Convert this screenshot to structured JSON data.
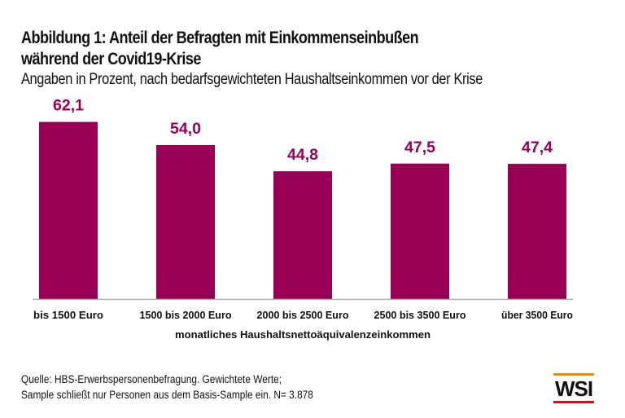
{
  "chart_data": {
    "type": "bar",
    "title": "Abbildung 1: Anteil der Befragten mit Einkommenseinbußen während der Covid19-Krise",
    "title_lines": [
      "Abbildung 1: Anteil der Befragten mit Einkommenseinbußen",
      "während der Covid19-Krise"
    ],
    "subtitle": "Angaben in Prozent, nach bedarfsgewichteten Haushaltseinkommen vor der Krise",
    "categories": [
      "bis 1500 Euro",
      "1500 bis 2000 Euro",
      "2000 bis 2500 Euro",
      "2500 bis 3500 Euro",
      "über 3500 Euro"
    ],
    "values": [
      62.1,
      54.0,
      44.8,
      47.5,
      47.4
    ],
    "value_labels": [
      "62,1",
      "54,0",
      "44,8",
      "47,5",
      "47,4"
    ],
    "xlabel": "monatliches Haushaltsnettoäquivalenzeinkommen",
    "ylabel": "",
    "ylim": [
      0,
      62.1
    ],
    "grid": false,
    "bar_color": "#990055"
  },
  "footer": {
    "source_lines": [
      "Quelle: HBS-Erwerbspersonenbefragung. Gewichtete Werte;",
      "Sample schließt nur Personen aus dem Basis-Sample ein. N= 3.878"
    ],
    "logo_text": "WSI",
    "logo_colors": {
      "top": "#f28a00",
      "bottom": "#e30613"
    }
  }
}
